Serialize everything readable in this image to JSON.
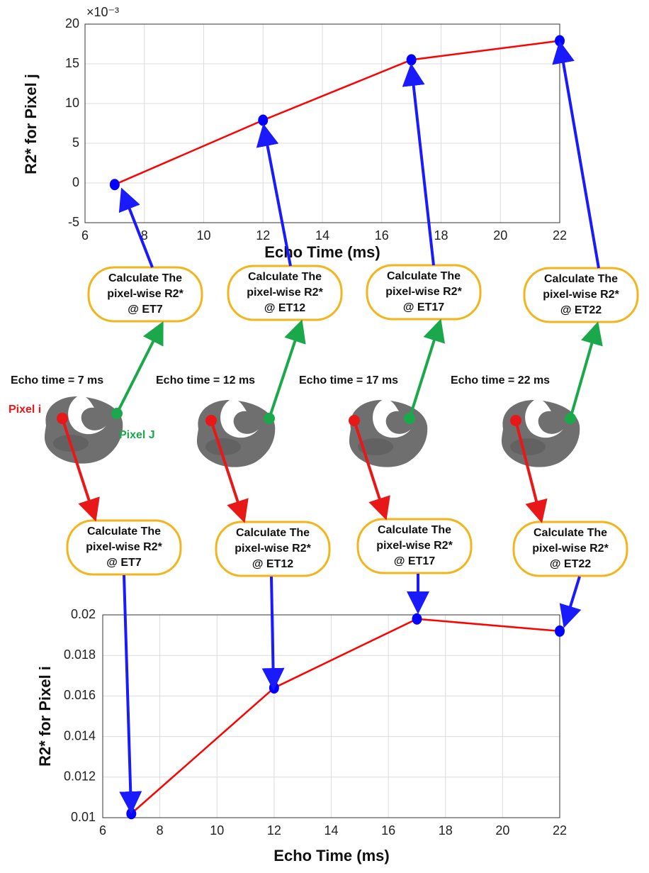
{
  "chart_data": [
    {
      "type": "line",
      "xlabel": "Echo Time (ms)",
      "ylabel": "R2* for Pixel j",
      "y_exponent_label": "×10⁻³",
      "x": [
        7,
        12,
        17,
        22
      ],
      "series": [
        {
          "color": "#ff0000",
          "marker_color": "#0000ff",
          "values": [
            -0.2,
            7.9,
            15.5,
            17.9
          ]
        }
      ],
      "xlim": [
        6,
        22
      ],
      "xticks": [
        6,
        8,
        10,
        12,
        14,
        16,
        18,
        20,
        22
      ],
      "ylim": [
        -5,
        20
      ],
      "yticks": [
        -5,
        0,
        5,
        10,
        15,
        20
      ],
      "grid": true
    },
    {
      "type": "line",
      "xlabel": "Echo Time (ms)",
      "ylabel": "R2* for Pixel i",
      "x": [
        7,
        12,
        17,
        22
      ],
      "series": [
        {
          "color": "#ff0000",
          "marker_color": "#0000ff",
          "values": [
            0.0102,
            0.0164,
            0.0198,
            0.0192
          ]
        }
      ],
      "xlim": [
        6,
        22
      ],
      "xticks": [
        6,
        8,
        10,
        12,
        14,
        16,
        18,
        20,
        22
      ],
      "ylim": [
        0.01,
        0.02
      ],
      "yticks": [
        0.01,
        0.012,
        0.014,
        0.016,
        0.018,
        0.02
      ],
      "grid": true
    }
  ],
  "diagram": {
    "top_boxes": [
      {
        "lines": [
          "Calculate The",
          "pixel-wise R2*",
          "@ ET7"
        ]
      },
      {
        "lines": [
          "Calculate The",
          "pixel-wise R2*",
          "@ ET12"
        ]
      },
      {
        "lines": [
          "Calculate The",
          "pixel-wise R2*",
          "@ ET17"
        ]
      },
      {
        "lines": [
          "Calculate The",
          "pixel-wise R2*",
          "@ ET22"
        ]
      }
    ],
    "bottom_boxes": [
      {
        "lines": [
          "Calculate The",
          "pixel-wise R2*",
          "@ ET7"
        ]
      },
      {
        "lines": [
          "Calculate The",
          "pixel-wise R2*",
          "@ ET12"
        ]
      },
      {
        "lines": [
          "Calculate The",
          "pixel-wise R2*",
          "@ ET17"
        ]
      },
      {
        "lines": [
          "Calculate The",
          "pixel-wise R2*",
          "@ ET22"
        ]
      }
    ],
    "echo_labels": [
      "Echo time = 7 ms",
      "Echo time = 12 ms",
      "Echo time = 17 ms",
      "Echo time = 22 ms"
    ],
    "pixel_i_label": "Pixel i",
    "pixel_j_label": "Pixel J"
  }
}
